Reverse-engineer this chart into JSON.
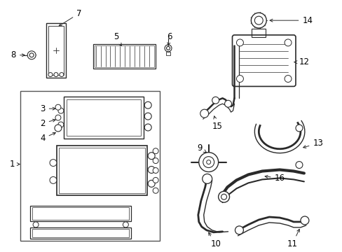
{
  "background_color": "#ffffff",
  "line_color": "#2a2a2a",
  "label_color": "#000000",
  "fig_width": 4.89,
  "fig_height": 3.6,
  "dpi": 100,
  "label_fontsize": 8.5,
  "arrow_lw": 0.7,
  "arrow_mutation_scale": 7
}
